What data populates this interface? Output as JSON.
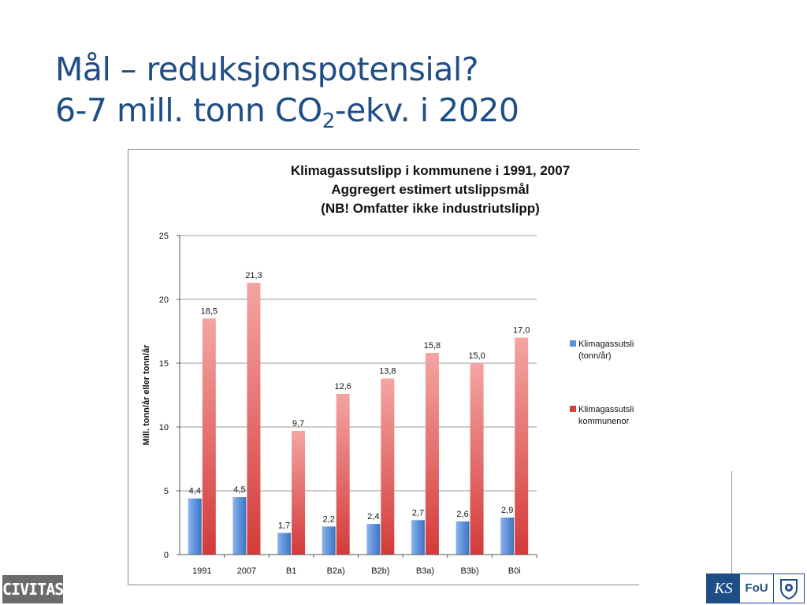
{
  "slide": {
    "title_line1": "Mål – reduksjonspotensial?",
    "title_line2_pre": "6-7 mill. tonn CO",
    "title_line2_sub": "2",
    "title_line2_post": "-ekv. i 2020"
  },
  "logos": {
    "civitas": "CIVITAS",
    "ks": "KS",
    "fou": "FoU"
  },
  "chart_data": {
    "type": "bar",
    "title": [
      "Klimagassutslipp i kommunene i 1991, 2007",
      "Aggregert estimert utslippsmål",
      "(NB! Omfatter ikke industriutslipp)"
    ],
    "ylabel": "Mill. tonn/år eller tonn/år",
    "xlabel": "",
    "ylim": [
      0,
      25
    ],
    "yticks": [
      0,
      5,
      10,
      15,
      20,
      25
    ],
    "grid": true,
    "legend_position": "right",
    "categories": [
      "1991",
      "2007",
      "B1",
      "B2a)",
      "B2b)",
      "B3a)",
      "B3b)",
      "B0i"
    ],
    "series": [
      {
        "name": "Klimagassutsli (tonn/år)",
        "legend_lines": [
          "Klimagassutsli",
          "(tonn/år)"
        ],
        "color": "#5b8fd8",
        "values": [
          4.4,
          4.5,
          1.7,
          2.2,
          2.4,
          2.7,
          2.6,
          2.9
        ],
        "labels": [
          "4,4",
          "4,5",
          "1,7",
          "2,2",
          "2,4",
          "2,7",
          "2,6",
          "2,9"
        ]
      },
      {
        "name": "Klimagassutsli kommunenor",
        "legend_lines": [
          "Klimagassutsli",
          "kommunenor"
        ],
        "color": "#d9403f",
        "values": [
          18.5,
          21.3,
          9.7,
          12.6,
          13.8,
          15.8,
          15.0,
          17.0
        ],
        "labels": [
          "18,5",
          "21,3",
          "9,7",
          "12,6",
          "13,8",
          "15,8",
          "15,0",
          "17,0"
        ]
      }
    ]
  }
}
